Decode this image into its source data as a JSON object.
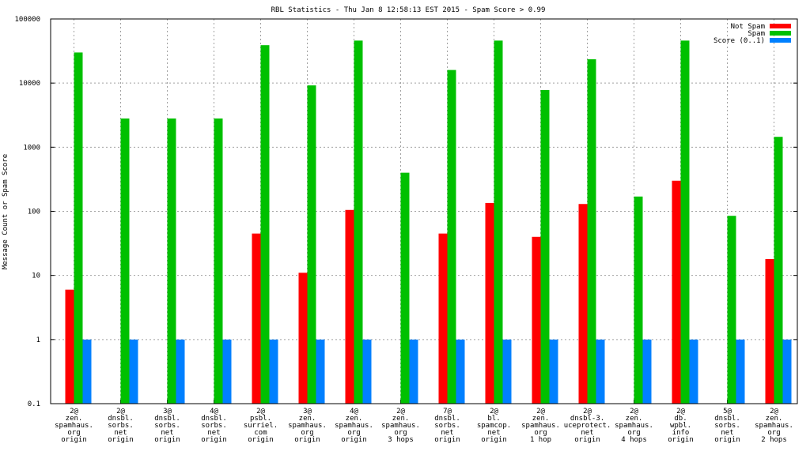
{
  "chart_data": {
    "type": "bar",
    "title": "RBL Statistics - Thu Jan  8 12:58:13 EST 2015 - Spam Score > 0.99",
    "ylabel": "Message Count or Spam Score",
    "xlabel": "",
    "yscale": "log",
    "ylim": [
      0.1,
      100000
    ],
    "yticks": [
      "0.1",
      "1",
      "10",
      "100",
      "1000",
      "10000",
      "100000"
    ],
    "grid": true,
    "legend_position": "top-right",
    "categories": [
      [
        "2@",
        "zen.",
        "spamhaus.",
        "org",
        "origin"
      ],
      [
        "2@",
        "dnsbl.",
        "sorbs.",
        "net",
        "origin"
      ],
      [
        "3@",
        "dnsbl.",
        "sorbs.",
        "net",
        "origin"
      ],
      [
        "4@",
        "dnsbl.",
        "sorbs.",
        "net",
        "origin"
      ],
      [
        "2@",
        "psbl.",
        "surriel.",
        "com",
        "origin"
      ],
      [
        "3@",
        "zen.",
        "spamhaus.",
        "org",
        "origin"
      ],
      [
        "4@",
        "zen.",
        "spamhaus.",
        "org",
        "origin"
      ],
      [
        "2@",
        "zen.",
        "spamhaus.",
        "org",
        "3 hops"
      ],
      [
        "7@",
        "dnsbl.",
        "sorbs.",
        "net",
        "origin"
      ],
      [
        "2@",
        "bl.",
        "spamcop.",
        "net",
        "origin"
      ],
      [
        "2@",
        "zen.",
        "spamhaus.",
        "org",
        "1 hop"
      ],
      [
        "2@",
        "dnsbl-3.",
        "uceprotect.",
        "net",
        "origin"
      ],
      [
        "2@",
        "zen.",
        "spamhaus.",
        "org",
        "4 hops"
      ],
      [
        "2@",
        "db.",
        "wpbl.",
        "info",
        "origin"
      ],
      [
        "5@",
        "dnsbl.",
        "sorbs.",
        "net",
        "origin"
      ],
      [
        "2@",
        "zen.",
        "spamhaus.",
        "org",
        "2 hops"
      ]
    ],
    "series": [
      {
        "name": "Not Spam",
        "color": "#ff0000",
        "values": [
          6,
          null,
          null,
          null,
          45,
          11,
          105,
          null,
          45,
          135,
          40,
          130,
          null,
          300,
          null,
          18
        ]
      },
      {
        "name": "Spam",
        "color": "#00c000",
        "values": [
          30000,
          2800,
          2800,
          2800,
          39000,
          9200,
          46000,
          400,
          16000,
          46000,
          7800,
          23500,
          170,
          46000,
          85,
          1450
        ]
      },
      {
        "name": "Score (0..1)",
        "color": "#0080ff",
        "values": [
          1,
          1,
          1,
          1,
          1,
          1,
          1,
          1,
          1,
          1,
          1,
          1,
          1,
          1,
          1,
          1
        ]
      }
    ]
  }
}
